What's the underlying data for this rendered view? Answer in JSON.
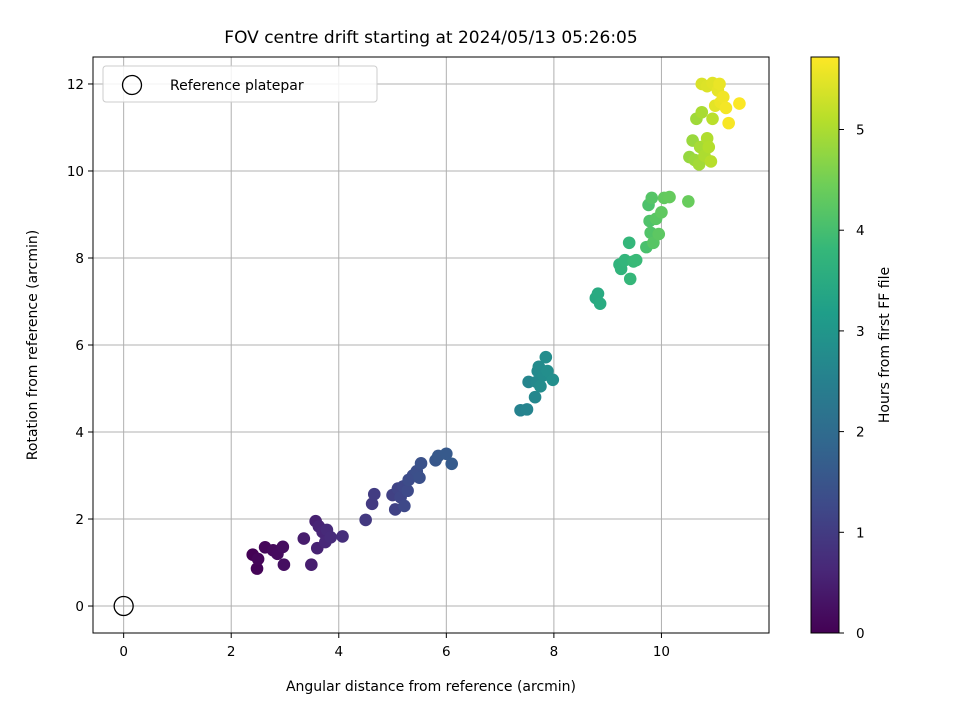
{
  "chart_data": {
    "type": "scatter",
    "title": "FOV centre drift starting at 2024/05/13 05:26:05",
    "xlabel": "Angular distance from reference (arcmin)",
    "ylabel": "Rotation from reference (arcmin)",
    "xlim": [
      -0.57,
      12.0
    ],
    "ylim": [
      -0.62,
      12.62
    ],
    "xticks": [
      0,
      2,
      4,
      6,
      8,
      10
    ],
    "yticks": [
      0,
      2,
      4,
      6,
      8,
      10,
      12
    ],
    "grid": true,
    "legend": {
      "placement": "top-left",
      "entries": [
        {
          "label": "Reference platepar",
          "marker": "open-circle"
        }
      ]
    },
    "reference_point": {
      "x": 0,
      "y": 0
    },
    "colorbar": {
      "label": "Hours from first FF file",
      "colormap": "viridis",
      "range": [
        0,
        5.72
      ],
      "ticks": [
        0,
        1,
        2,
        3,
        4,
        5
      ]
    },
    "points": [
      {
        "x": 2.4,
        "y": 1.18,
        "c": 0.02
      },
      {
        "x": 2.48,
        "y": 0.86,
        "c": 0.05
      },
      {
        "x": 2.5,
        "y": 1.08,
        "c": 0.08
      },
      {
        "x": 2.63,
        "y": 1.35,
        "c": 0.11
      },
      {
        "x": 2.78,
        "y": 1.28,
        "c": 0.14
      },
      {
        "x": 2.86,
        "y": 1.2,
        "c": 0.17
      },
      {
        "x": 2.96,
        "y": 1.36,
        "c": 0.2
      },
      {
        "x": 2.98,
        "y": 0.95,
        "c": 0.23
      },
      {
        "x": 3.35,
        "y": 1.55,
        "c": 0.45
      },
      {
        "x": 3.49,
        "y": 0.95,
        "c": 0.48
      },
      {
        "x": 3.57,
        "y": 1.95,
        "c": 0.52
      },
      {
        "x": 3.6,
        "y": 1.33,
        "c": 0.55
      },
      {
        "x": 3.63,
        "y": 1.83,
        "c": 0.58
      },
      {
        "x": 3.7,
        "y": 1.7,
        "c": 0.61
      },
      {
        "x": 3.75,
        "y": 1.47,
        "c": 0.64
      },
      {
        "x": 3.78,
        "y": 1.75,
        "c": 0.67
      },
      {
        "x": 3.85,
        "y": 1.58,
        "c": 0.7
      },
      {
        "x": 4.07,
        "y": 1.6,
        "c": 0.74
      },
      {
        "x": 4.5,
        "y": 1.98,
        "c": 0.95
      },
      {
        "x": 4.62,
        "y": 2.35,
        "c": 0.98
      },
      {
        "x": 4.66,
        "y": 2.57,
        "c": 1.01
      },
      {
        "x": 5.0,
        "y": 2.55,
        "c": 1.1
      },
      {
        "x": 5.05,
        "y": 2.22,
        "c": 1.13
      },
      {
        "x": 5.1,
        "y": 2.7,
        "c": 1.16
      },
      {
        "x": 5.15,
        "y": 2.5,
        "c": 1.19
      },
      {
        "x": 5.2,
        "y": 2.75,
        "c": 1.22
      },
      {
        "x": 5.22,
        "y": 2.3,
        "c": 1.25
      },
      {
        "x": 5.28,
        "y": 2.65,
        "c": 1.28
      },
      {
        "x": 5.3,
        "y": 2.9,
        "c": 1.31
      },
      {
        "x": 5.38,
        "y": 3.0,
        "c": 1.34
      },
      {
        "x": 5.45,
        "y": 3.1,
        "c": 1.37
      },
      {
        "x": 5.5,
        "y": 2.95,
        "c": 1.4
      },
      {
        "x": 5.53,
        "y": 3.28,
        "c": 1.43
      },
      {
        "x": 5.8,
        "y": 3.35,
        "c": 1.55
      },
      {
        "x": 5.85,
        "y": 3.45,
        "c": 1.58
      },
      {
        "x": 6.0,
        "y": 3.5,
        "c": 1.61
      },
      {
        "x": 6.1,
        "y": 3.27,
        "c": 1.64
      },
      {
        "x": 7.38,
        "y": 4.5,
        "c": 2.55
      },
      {
        "x": 7.5,
        "y": 4.52,
        "c": 2.58
      },
      {
        "x": 7.53,
        "y": 5.15,
        "c": 2.62
      },
      {
        "x": 7.65,
        "y": 4.8,
        "c": 2.66
      },
      {
        "x": 7.68,
        "y": 5.15,
        "c": 2.7
      },
      {
        "x": 7.7,
        "y": 5.4,
        "c": 2.72
      },
      {
        "x": 7.72,
        "y": 5.5,
        "c": 2.74
      },
      {
        "x": 7.75,
        "y": 5.05,
        "c": 2.76
      },
      {
        "x": 7.8,
        "y": 5.3,
        "c": 2.78
      },
      {
        "x": 7.85,
        "y": 5.72,
        "c": 2.8
      },
      {
        "x": 7.88,
        "y": 5.4,
        "c": 2.82
      },
      {
        "x": 7.98,
        "y": 5.2,
        "c": 2.84
      },
      {
        "x": 8.78,
        "y": 7.08,
        "c": 3.45
      },
      {
        "x": 8.82,
        "y": 7.18,
        "c": 3.48
      },
      {
        "x": 8.86,
        "y": 6.95,
        "c": 3.51
      },
      {
        "x": 9.22,
        "y": 7.85,
        "c": 3.7
      },
      {
        "x": 9.25,
        "y": 7.75,
        "c": 3.72
      },
      {
        "x": 9.32,
        "y": 7.95,
        "c": 3.75
      },
      {
        "x": 9.4,
        "y": 8.35,
        "c": 3.78
      },
      {
        "x": 9.42,
        "y": 7.52,
        "c": 3.8
      },
      {
        "x": 9.48,
        "y": 7.92,
        "c": 3.83
      },
      {
        "x": 9.53,
        "y": 7.95,
        "c": 3.86
      },
      {
        "x": 9.72,
        "y": 8.25,
        "c": 4.05
      },
      {
        "x": 9.76,
        "y": 9.22,
        "c": 4.08
      },
      {
        "x": 9.78,
        "y": 8.85,
        "c": 4.11
      },
      {
        "x": 9.8,
        "y": 8.58,
        "c": 4.14
      },
      {
        "x": 9.82,
        "y": 9.38,
        "c": 4.17
      },
      {
        "x": 9.85,
        "y": 8.35,
        "c": 4.2
      },
      {
        "x": 9.9,
        "y": 8.9,
        "c": 4.23
      },
      {
        "x": 9.95,
        "y": 8.55,
        "c": 4.26
      },
      {
        "x": 10.0,
        "y": 9.05,
        "c": 4.29
      },
      {
        "x": 10.05,
        "y": 9.38,
        "c": 4.32
      },
      {
        "x": 10.15,
        "y": 9.4,
        "c": 4.35
      },
      {
        "x": 10.5,
        "y": 9.3,
        "c": 4.38
      },
      {
        "x": 10.52,
        "y": 10.32,
        "c": 4.8
      },
      {
        "x": 10.58,
        "y": 10.7,
        "c": 4.83
      },
      {
        "x": 10.62,
        "y": 10.25,
        "c": 4.86
      },
      {
        "x": 10.65,
        "y": 11.2,
        "c": 4.89
      },
      {
        "x": 10.7,
        "y": 10.15,
        "c": 4.92
      },
      {
        "x": 10.72,
        "y": 10.55,
        "c": 4.95
      },
      {
        "x": 10.75,
        "y": 11.35,
        "c": 4.98
      },
      {
        "x": 10.8,
        "y": 10.35,
        "c": 5.01
      },
      {
        "x": 10.85,
        "y": 10.75,
        "c": 5.04
      },
      {
        "x": 10.88,
        "y": 10.55,
        "c": 5.07
      },
      {
        "x": 10.92,
        "y": 10.22,
        "c": 5.1
      },
      {
        "x": 10.95,
        "y": 11.2,
        "c": 5.13
      },
      {
        "x": 10.75,
        "y": 12.0,
        "c": 5.4
      },
      {
        "x": 10.85,
        "y": 11.95,
        "c": 5.43
      },
      {
        "x": 10.95,
        "y": 12.02,
        "c": 5.46
      },
      {
        "x": 11.0,
        "y": 11.5,
        "c": 5.49
      },
      {
        "x": 11.05,
        "y": 11.85,
        "c": 5.52
      },
      {
        "x": 11.08,
        "y": 12.0,
        "c": 5.55
      },
      {
        "x": 11.1,
        "y": 11.58,
        "c": 5.58
      },
      {
        "x": 11.15,
        "y": 11.7,
        "c": 5.61
      },
      {
        "x": 11.2,
        "y": 11.45,
        "c": 5.64
      },
      {
        "x": 11.25,
        "y": 11.1,
        "c": 5.67
      },
      {
        "x": 11.45,
        "y": 11.55,
        "c": 5.7
      }
    ]
  }
}
